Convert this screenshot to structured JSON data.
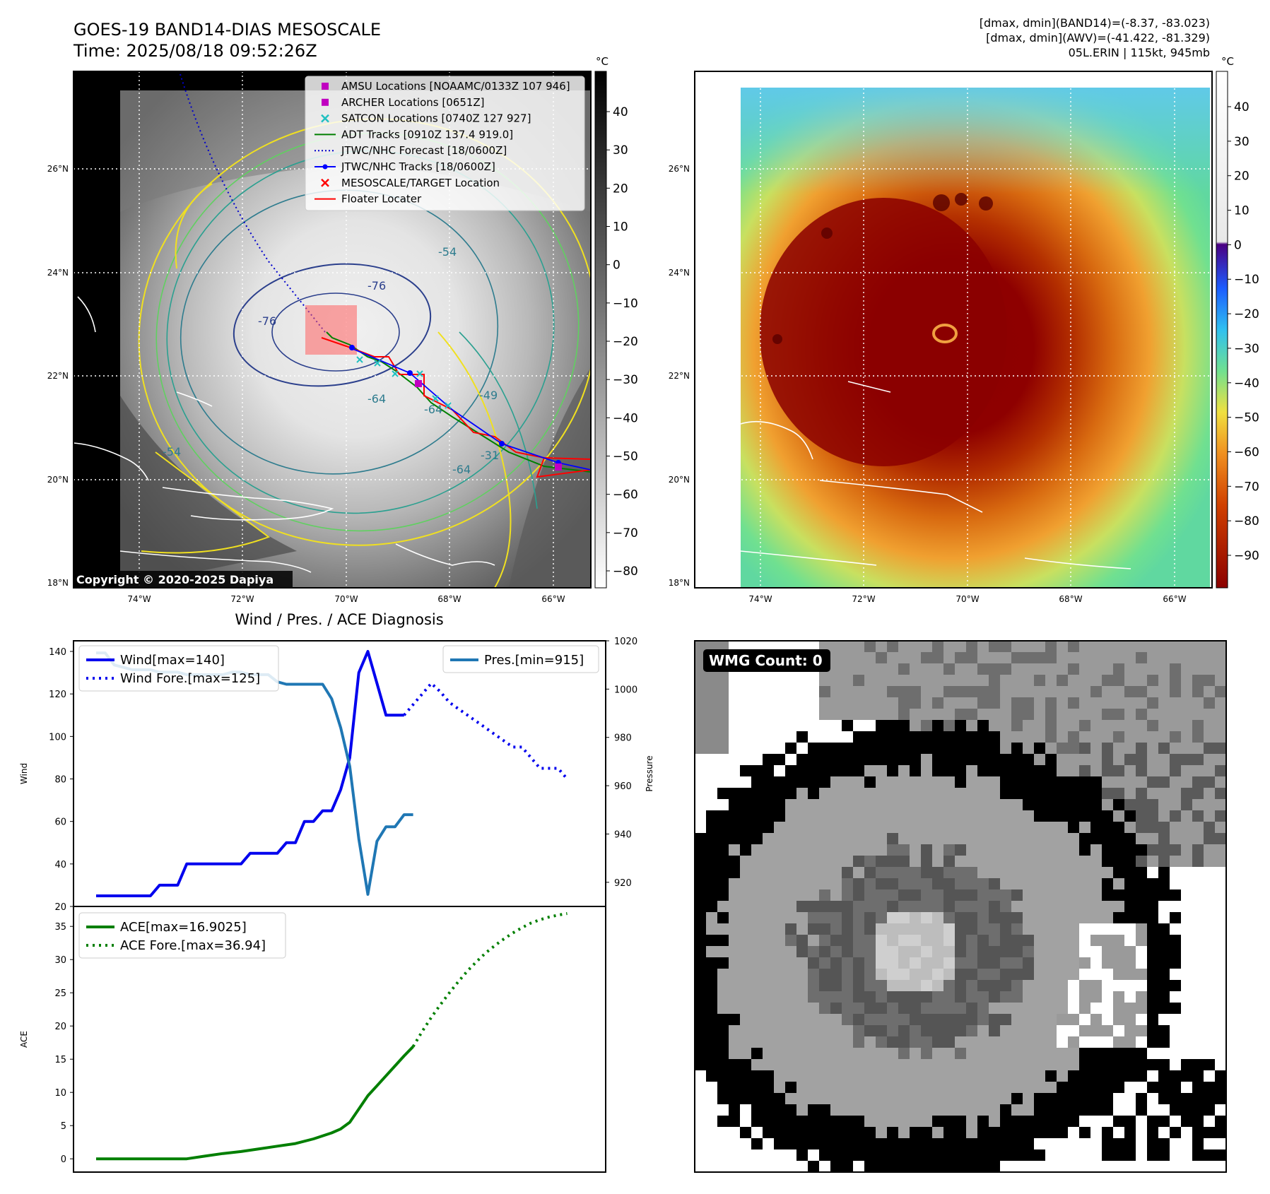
{
  "header": {
    "title_line1": "GOES-19 BAND14-DIAS MESOSCALE",
    "title_line2": "Time: 2025/08/18 09:52:26Z",
    "info_line1": "[dmax, dmin](BAND14)=(-8.37, -83.023)",
    "info_line2": "[dmax, dmin](AWV)=(-41.422, -81.329)",
    "info_line3": "05L.ERIN | 115kt, 945mb"
  },
  "map_axes": {
    "lon_labels": [
      "74°W",
      "72°W",
      "70°W",
      "68°W",
      "66°W"
    ],
    "lat_labels": [
      "26°N",
      "24°N",
      "22°N",
      "20°N",
      "18°N"
    ]
  },
  "ir_panel": {
    "unit": "°C",
    "colorbar_ticks": [
      "40",
      "30",
      "20",
      "10",
      "0",
      "−10",
      "−20",
      "−30",
      "−40",
      "−50",
      "−60",
      "−70",
      "−80"
    ],
    "contour_labels": [
      "-54",
      "-76",
      "-76",
      "-64",
      "-64",
      "-54",
      "-31",
      "-64",
      "-49"
    ],
    "copyright": "Copyright © 2020-2025 Dapiya",
    "legend": [
      {
        "label": "AMSU Locations [NOAAMC/0133Z 107 946]",
        "marker": "square",
        "color": "#c000c0"
      },
      {
        "label": "ARCHER Locations [0651Z]",
        "marker": "square",
        "color": "#c000c0"
      },
      {
        "label": "SATCON Locations [0740Z 127 927]",
        "marker": "x",
        "color": "#20c0c0"
      },
      {
        "label": "ADT Tracks [0910Z 137.4 919.0]",
        "marker": "line",
        "color": "#008000"
      },
      {
        "label": "JTWC/NHC Forecast [18/0600Z]",
        "marker": "dotted",
        "color": "#0000cc"
      },
      {
        "label": "JTWC/NHC Tracks [18/0600Z]",
        "marker": "line-dot",
        "color": "#0000ff"
      },
      {
        "label": "MESOSCALE/TARGET Location",
        "marker": "x",
        "color": "#ff0000"
      },
      {
        "label": "Floater Locater",
        "marker": "line",
        "color": "#ff0000"
      }
    ]
  },
  "awv_panel": {
    "unit": "°C",
    "colorbar_ticks": [
      "40",
      "30",
      "20",
      "10",
      "0",
      "−10",
      "−20",
      "−30",
      "−40",
      "−50",
      "−60",
      "−70",
      "−80",
      "−90"
    ]
  },
  "wmg_panel": {
    "badge": "WMG Count: 0"
  },
  "chart_data": [
    {
      "type": "line",
      "title": "Wind / Pres. / ACE Diagnosis",
      "ylabel": "Wind",
      "ylabel_right": "Pressure",
      "ylim": [
        20,
        145
      ],
      "ylim_right": [
        910,
        1020
      ],
      "y_ticks": [
        "20",
        "40",
        "60",
        "80",
        "100",
        "120",
        "140"
      ],
      "y_ticks_right": [
        "920",
        "940",
        "960",
        "980",
        "1000",
        "1020"
      ],
      "series": [
        {
          "name": "Wind[max=140]",
          "style": "solid",
          "color": "#0000ee",
          "x": [
            0,
            1,
            2,
            3,
            4,
            5,
            6,
            7,
            8,
            9,
            10,
            11,
            12,
            13,
            14,
            15,
            16,
            17,
            18,
            19,
            20,
            21,
            22,
            23,
            24,
            25,
            26,
            27,
            28,
            29,
            30,
            31,
            32,
            33,
            34
          ],
          "values": [
            25,
            25,
            25,
            25,
            25,
            25,
            25,
            30,
            30,
            30,
            40,
            40,
            40,
            40,
            40,
            40,
            40,
            45,
            45,
            45,
            45,
            50,
            50,
            60,
            60,
            65,
            65,
            75,
            90,
            130,
            140,
            125,
            110,
            110,
            110
          ]
        },
        {
          "name": "Wind Fore.[max=125]",
          "style": "dotted",
          "color": "#0000ee",
          "x": [
            34,
            35,
            36,
            37,
            38,
            39,
            40,
            41,
            42,
            43,
            44,
            45,
            46,
            47,
            48,
            49,
            50,
            51,
            52
          ],
          "values": [
            110,
            115,
            120,
            125,
            121,
            116,
            113,
            110,
            107,
            104,
            101,
            98,
            95,
            95,
            90,
            85,
            85,
            85,
            80
          ]
        },
        {
          "name": "Pres.[min=915]",
          "axis": "right",
          "style": "solid",
          "color": "#1f77b4",
          "x": [
            0,
            1,
            2,
            3,
            4,
            5,
            6,
            7,
            8,
            9,
            10,
            11,
            12,
            13,
            14,
            15,
            16,
            17,
            18,
            19,
            20,
            21,
            22,
            23,
            24,
            25,
            26,
            27,
            28,
            29,
            30,
            31,
            32,
            33,
            34,
            35
          ],
          "values": [
            1015,
            1015,
            1010,
            1009,
            1008,
            1008,
            1008,
            1007,
            1007,
            1007,
            1006,
            1006,
            1006,
            1006,
            1006,
            1007,
            1007,
            1006,
            1006,
            1006,
            1003,
            1002,
            1002,
            1002,
            1002,
            1002,
            996,
            984,
            968,
            938,
            915,
            937,
            943,
            943,
            948,
            948
          ]
        }
      ]
    },
    {
      "type": "line",
      "ylabel": "ACE",
      "ylim": [
        -2,
        38
      ],
      "y_ticks": [
        "0",
        "5",
        "10",
        "15",
        "20",
        "25",
        "30",
        "35"
      ],
      "series": [
        {
          "name": "ACE[max=16.9025]",
          "style": "solid",
          "color": "#007f00",
          "x": [
            0,
            4,
            8,
            10,
            12,
            14,
            16,
            18,
            20,
            22,
            24,
            26,
            27,
            28,
            29,
            30,
            31,
            32,
            33,
            34,
            35
          ],
          "values": [
            0,
            0,
            0,
            0,
            0.4,
            0.8,
            1.1,
            1.5,
            1.9,
            2.3,
            3.0,
            3.9,
            4.5,
            5.5,
            7.5,
            9.5,
            11.0,
            12.5,
            14.0,
            15.5,
            16.9
          ]
        },
        {
          "name": "ACE Fore.[max=36.94]",
          "style": "dotted",
          "color": "#007f00",
          "x": [
            35,
            36,
            37,
            38,
            39,
            40,
            41,
            42,
            43,
            44,
            45,
            46,
            47,
            48,
            49,
            50,
            51,
            52
          ],
          "values": [
            16.9,
            19.2,
            21.3,
            23.2,
            25.0,
            26.7,
            28.3,
            29.7,
            31.0,
            32.1,
            33.1,
            34.0,
            34.8,
            35.5,
            36.0,
            36.4,
            36.7,
            36.94
          ]
        }
      ]
    }
  ]
}
